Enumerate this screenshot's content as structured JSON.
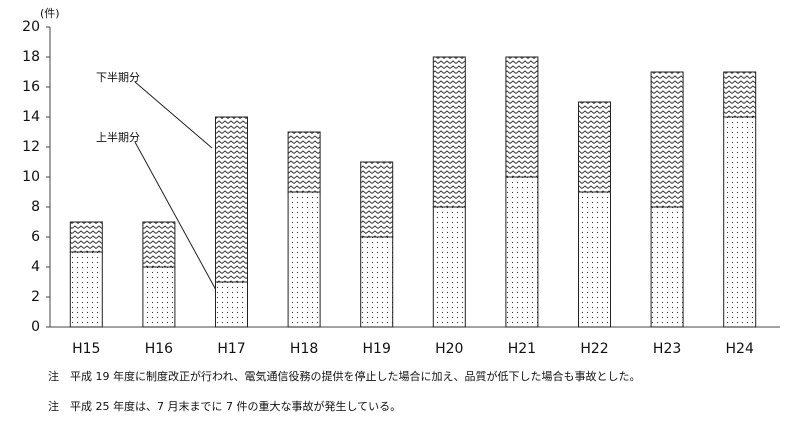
{
  "chart_data": {
    "type": "stacked-bar",
    "unit_label": "(件)",
    "categories": [
      "H15",
      "H16",
      "H17",
      "H18",
      "H19",
      "H20",
      "H21",
      "H22",
      "H23",
      "H24"
    ],
    "series": [
      {
        "name": "上半期分",
        "color": "#333333",
        "pattern": "dots",
        "values": [
          5,
          4,
          3,
          9,
          6,
          8,
          10,
          9,
          8,
          14
        ]
      },
      {
        "name": "下半期分",
        "color": "#333333",
        "pattern": "zigzag",
        "values": [
          2,
          3,
          11,
          4,
          5,
          10,
          8,
          6,
          9,
          3
        ]
      }
    ],
    "ylim": [
      0,
      20
    ],
    "yticks": [
      0,
      2,
      4,
      6,
      8,
      10,
      12,
      14,
      16,
      18,
      20
    ],
    "notes": [
      "注　平成 19 年度に制度改正が行われ、電気通信役務の提供を停止した場合に加え、品質が低下した場合も事故とした。",
      "注　平成 25 年度は、7 月末までに 7 件の重大な事故が発生している。"
    ]
  }
}
